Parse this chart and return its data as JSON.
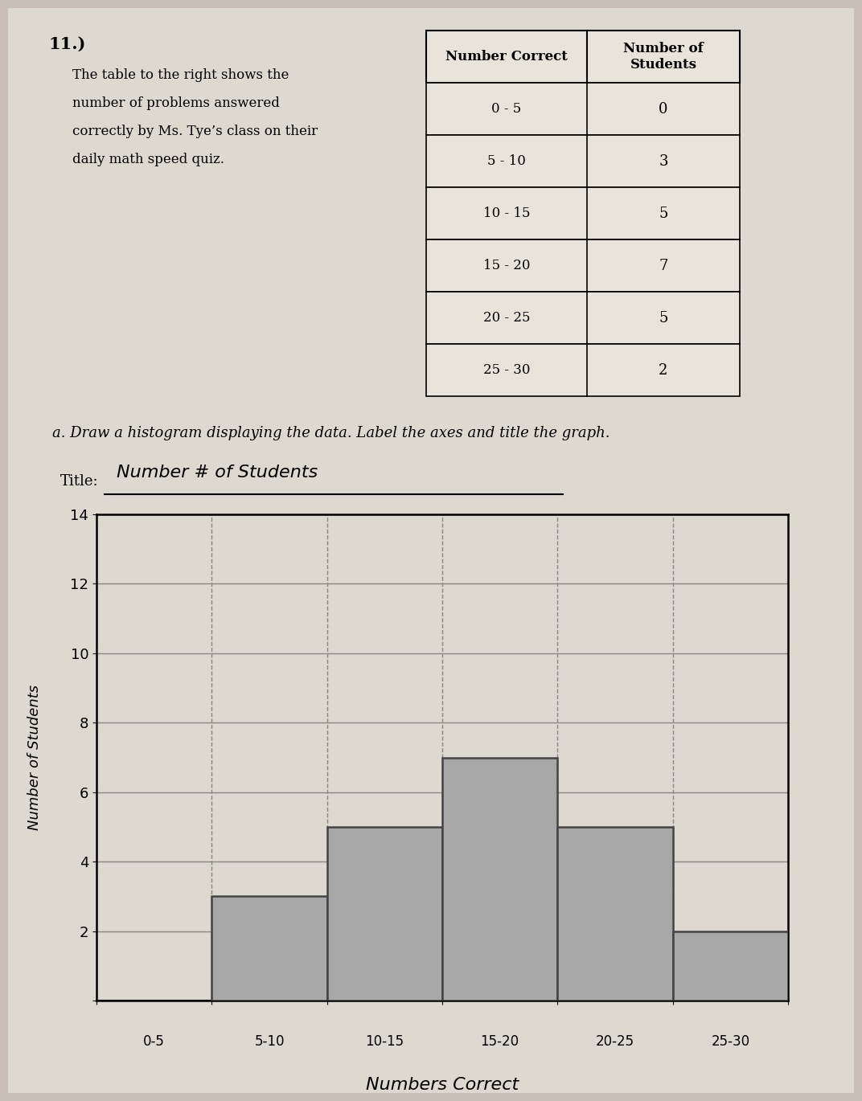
{
  "problem_number": "11.)",
  "problem_text_lines": [
    "The table to the right shows the",
    "number of problems answered",
    "correctly by Ms. Tye’s class on their",
    "daily math speed quiz."
  ],
  "part_a_text": "a. Draw a histogram displaying the data. Label the axes and title the graph.",
  "title_label": "Title:",
  "title_value": "Number # of Students",
  "table_headers": [
    "Number Correct",
    "Number of\nStudents"
  ],
  "table_rows": [
    [
      "0 - 5",
      "0"
    ],
    [
      "5 - 10",
      "3"
    ],
    [
      "10 - 15",
      "5"
    ],
    [
      "15 - 20",
      "7"
    ],
    [
      "20 - 25",
      "5"
    ],
    [
      "25 - 30",
      "2"
    ]
  ],
  "histogram_xlabel": "Numbers Correct",
  "histogram_xtick_labels": [
    "0-5",
    "5-10",
    "10-15",
    "15-20",
    "20-25",
    "25-30"
  ],
  "histogram_values": [
    0,
    3,
    5,
    7,
    5,
    2
  ],
  "histogram_ylim": [
    0,
    14
  ],
  "histogram_yticks": [
    2,
    4,
    6,
    8,
    10,
    12,
    14
  ],
  "histogram_ytick_labels": [
    "2",
    "4",
    "6",
    "8",
    "10",
    "12",
    "14"
  ],
  "bg_color": "#c8c0b8",
  "paper_color": "#ddd8d0",
  "table_bg": "#e8e4dc",
  "bar_facecolor": "#a8a8a8",
  "bar_edgecolor": "#444444",
  "grid_color": "#888888",
  "grid_linestyle": "--"
}
